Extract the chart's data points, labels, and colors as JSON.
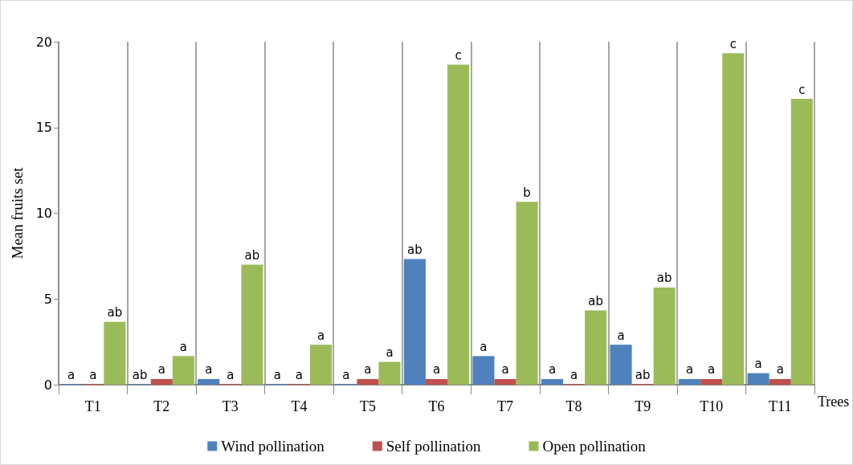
{
  "chart_data": {
    "type": "bar",
    "xlabel": "Trees",
    "ylabel": "Mean fruits set",
    "categories": [
      "T1",
      "T2",
      "T3",
      "T4",
      "T5",
      "T6",
      "T7",
      "T8",
      "T9",
      "T10",
      "T11"
    ],
    "series": [
      {
        "name": "Wind pollination",
        "color": "#4f81bd",
        "values": [
          0,
          0,
          0.33,
          0,
          0,
          7.33,
          1.67,
          0.33,
          2.33,
          0.33,
          0.67
        ],
        "value_labels": [
          "a",
          "ab",
          "a",
          "a",
          "a",
          "ab",
          "a",
          "a",
          "a",
          "a",
          "a"
        ]
      },
      {
        "name": "Self pollination",
        "color": "#c0504d",
        "values": [
          0,
          0.33,
          0,
          0,
          0.33,
          0.33,
          0.33,
          0,
          0,
          0.33,
          0.33
        ],
        "value_labels": [
          "a",
          "a",
          "a",
          "a",
          "a",
          "a",
          "a",
          "a",
          "ab",
          "a",
          "a"
        ]
      },
      {
        "name": "Open pollination",
        "color": "#9bbb59",
        "values": [
          3.67,
          1.67,
          7,
          2.33,
          1.33,
          18.67,
          10.67,
          4.33,
          5.67,
          19.33,
          16.67
        ],
        "value_labels": [
          "ab",
          "a",
          "ab",
          "a",
          "a",
          "c",
          "b",
          "ab",
          "ab",
          "c",
          "c"
        ]
      }
    ],
    "ylim": [
      0,
      20
    ],
    "yticks": [
      0,
      5,
      10,
      15,
      20
    ],
    "grid": "x",
    "legend": "bottom"
  }
}
